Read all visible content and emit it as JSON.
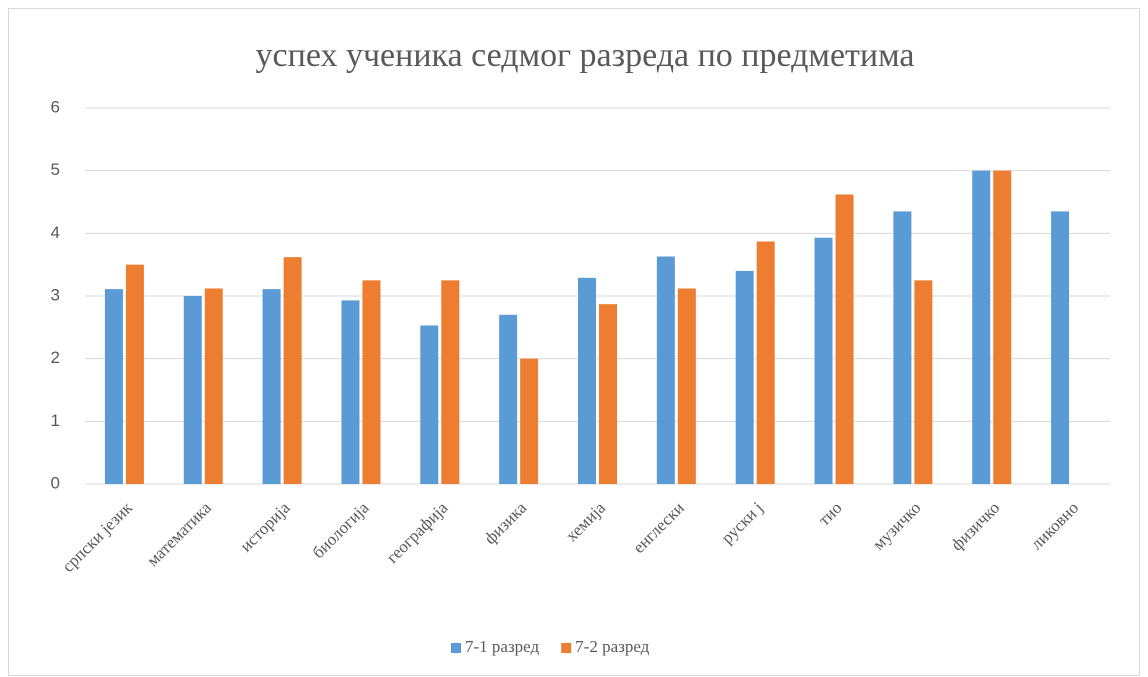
{
  "chart_data": {
    "type": "bar",
    "title": "успех ученика седмог разреда по предметима",
    "categories": [
      "српски језик",
      "математика",
      "историја",
      "биологија",
      "географија",
      "физика",
      "хемија",
      "енглески",
      "руски ј",
      "тио",
      "музичко",
      "физичко",
      "ликовно"
    ],
    "series": [
      {
        "name": "7-1 разред",
        "color": "#5b9bd5",
        "values": [
          3.11,
          3.0,
          3.11,
          2.93,
          2.53,
          2.7,
          3.29,
          3.63,
          3.4,
          3.93,
          4.35,
          5,
          4.35
        ]
      },
      {
        "name": "7-2 разред",
        "color": "#ed7d31",
        "values": [
          3.5,
          3.12,
          3.62,
          3.25,
          3.25,
          2.0,
          2.87,
          3.12,
          3.87,
          4.62,
          3.25,
          5,
          null
        ]
      }
    ],
    "ylim": [
      0,
      6
    ],
    "yticks": [
      0,
      1,
      2,
      3,
      4,
      5,
      6
    ],
    "grid": true,
    "legend": "bottom"
  }
}
